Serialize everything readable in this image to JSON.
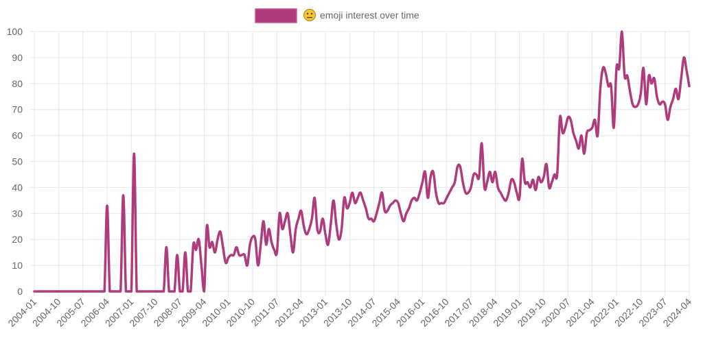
{
  "chart_data": {
    "type": "line",
    "title": "",
    "xlabel": "",
    "ylabel": "",
    "legend": {
      "position": "top",
      "entries": [
        {
          "icon": "neutral-face-emoji",
          "label": "emoji interest over time"
        }
      ]
    },
    "series": [
      {
        "name": "emoji interest over time",
        "color": "#b03b7c"
      }
    ],
    "grid": true,
    "ylim": [
      0,
      100
    ],
    "yticks": [
      "0",
      "10",
      "20",
      "30",
      "40",
      "50",
      "60",
      "70",
      "80",
      "90",
      "100"
    ],
    "x_start": "2004-01",
    "x_end": "2024-04",
    "x_interval": "monthly",
    "xticks": [
      "2004-01",
      "2004-10",
      "2005-07",
      "2006-04",
      "2007-01",
      "2007-10",
      "2008-07",
      "2009-04",
      "2010-01",
      "2010-10",
      "2011-07",
      "2012-04",
      "2013-01",
      "2013-10",
      "2014-07",
      "2015-04",
      "2016-01",
      "2016-10",
      "2017-07",
      "2018-04",
      "2019-01",
      "2019-10",
      "2020-07",
      "2021-04",
      "2022-01",
      "2022-10",
      "2023-07",
      "2024-04"
    ],
    "values": [
      0,
      0,
      0,
      0,
      0,
      0,
      0,
      0,
      0,
      0,
      0,
      0,
      0,
      0,
      0,
      0,
      0,
      0,
      0,
      0,
      0,
      0,
      0,
      0,
      0,
      0,
      0,
      33,
      0,
      0,
      0,
      0,
      0,
      37,
      0,
      0,
      0,
      53,
      0,
      0,
      0,
      0,
      0,
      0,
      0,
      0,
      0,
      0,
      0,
      17,
      0,
      0,
      0,
      14,
      0,
      0,
      15,
      0,
      0,
      18,
      16,
      20,
      10,
      0,
      25,
      17,
      19,
      15,
      20,
      23,
      17,
      11,
      13,
      14,
      14,
      17,
      14,
      14,
      14,
      10,
      18,
      21,
      20,
      10,
      18,
      27,
      18,
      24,
      19,
      16,
      15,
      30,
      24,
      27,
      30,
      22,
      15,
      24,
      28,
      31,
      25,
      22,
      24,
      28,
      36,
      24,
      23,
      28,
      22,
      18,
      26,
      35,
      26,
      20,
      24,
      36,
      32,
      34,
      38,
      34,
      36,
      38,
      35,
      32,
      28,
      28,
      27,
      30,
      34,
      38,
      31,
      31,
      33,
      34,
      35,
      34,
      30,
      27,
      30,
      32,
      35,
      36,
      35,
      38,
      42,
      46,
      36,
      44,
      46,
      38,
      34,
      34,
      34,
      36,
      38,
      40,
      42,
      48,
      48,
      42,
      38,
      38,
      40,
      45,
      45,
      44,
      57,
      40,
      42,
      46,
      42,
      46,
      40,
      38,
      36,
      35,
      38,
      43,
      42,
      38,
      36,
      51,
      42,
      42,
      40,
      43,
      39,
      44,
      42,
      44,
      49,
      40,
      42,
      45,
      45,
      67,
      61,
      63,
      67,
      66,
      61,
      58,
      55,
      60,
      53,
      61,
      62,
      63,
      66,
      60,
      78,
      86,
      84,
      79,
      79,
      63,
      86,
      86,
      100,
      83,
      83,
      77,
      72,
      71,
      72,
      76,
      86,
      72,
      83,
      80,
      82,
      75,
      72,
      73,
      72,
      66,
      71,
      74,
      78,
      74,
      82,
      90,
      85,
      79
    ]
  }
}
